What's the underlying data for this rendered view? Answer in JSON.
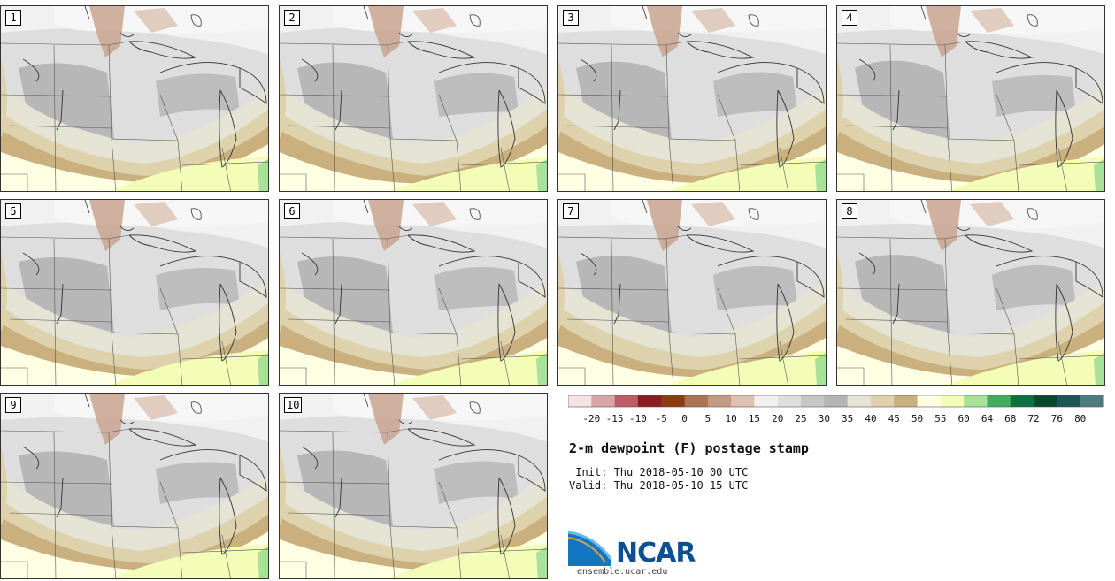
{
  "title": "2-m dewpoint (F) postage stamp",
  "init": " Init: Thu 2018-05-10 00 UTC",
  "valid": "Valid: Thu 2018-05-10 15 UTC",
  "logo": {
    "name": "NCAR",
    "url": "ensemble.ucar.edu"
  },
  "members": [
    "1",
    "2",
    "3",
    "4",
    "5",
    "6",
    "7",
    "8",
    "9",
    "10"
  ],
  "colorbar": {
    "ticks": [
      "-20",
      "-15",
      "-10",
      "-5",
      "0",
      "5",
      "10",
      "15",
      "20",
      "25",
      "30",
      "35",
      "40",
      "45",
      "50",
      "55",
      "60",
      "64",
      "68",
      "72",
      "76",
      "80"
    ],
    "colors": [
      "#f3e3e3",
      "#d9a4a6",
      "#bd5c66",
      "#8b1c24",
      "#8b3c12",
      "#ab7452",
      "#c39b84",
      "#dcc2b3",
      "#f0f0f0",
      "#dedede",
      "#c6c6c6",
      "#b5b5b5",
      "#e4e3d4",
      "#ded2ad",
      "#c9b07e",
      "#ffffe4",
      "#f3fdb8",
      "#a7e298",
      "#41ac60",
      "#0d7040",
      "#064a2b",
      "#1e5658",
      "#4e7b7e"
    ]
  }
}
